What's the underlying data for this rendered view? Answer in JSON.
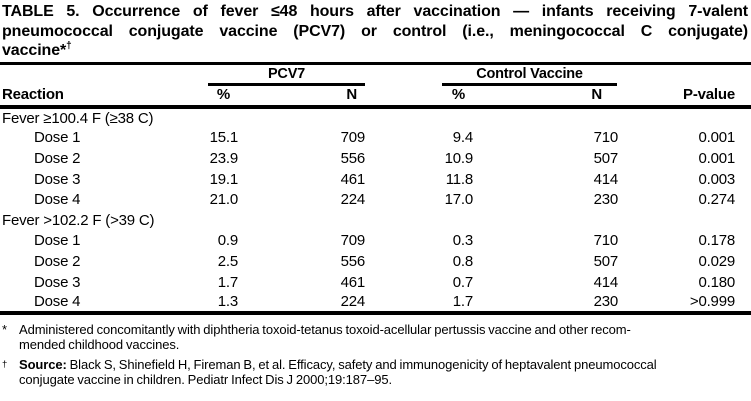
{
  "title": {
    "line1": "TABLE 5. Occurrence of fever ≤48 hours after vaccination — infants receiving 7-valent",
    "line2": "pneumococcal conjugate vaccine (PCV7) or control (i.e., meningococcal C conjugate)",
    "line3_text": "vaccine*",
    "line3_dagger": "†"
  },
  "table": {
    "groups": {
      "pcv7": "PCV7",
      "control": "Control Vaccine"
    },
    "columns": {
      "reaction": "Reaction",
      "pcv7_pct": "%",
      "pcv7_n": "N",
      "control_pct": "%",
      "control_n": "N",
      "p_value": "P-value"
    },
    "sections": [
      {
        "label": "Fever ≥100.4 F (≥38 C)",
        "rows": [
          {
            "reaction": "Dose 1",
            "pcv7_pct": "15.1",
            "pcv7_n": "709",
            "ctrl_pct": "9.4",
            "ctrl_n": "710",
            "p": "0.001"
          },
          {
            "reaction": "Dose 2",
            "pcv7_pct": "23.9",
            "pcv7_n": "556",
            "ctrl_pct": "10.9",
            "ctrl_n": "507",
            "p": "0.001"
          },
          {
            "reaction": "Dose 3",
            "pcv7_pct": "19.1",
            "pcv7_n": "461",
            "ctrl_pct": "11.8",
            "ctrl_n": "414",
            "p": "0.003"
          },
          {
            "reaction": "Dose 4",
            "pcv7_pct": "21.0",
            "pcv7_n": "224",
            "ctrl_pct": "17.0",
            "ctrl_n": "230",
            "p": "0.274"
          }
        ]
      },
      {
        "label": "Fever >102.2 F (>39 C)",
        "rows": [
          {
            "reaction": "Dose 1",
            "pcv7_pct": "0.9",
            "pcv7_n": "709",
            "ctrl_pct": "0.3",
            "ctrl_n": "710",
            "p": "0.178"
          },
          {
            "reaction": "Dose 2",
            "pcv7_pct": "2.5",
            "pcv7_n": "556",
            "ctrl_pct": "0.8",
            "ctrl_n": "507",
            "p": "0.029"
          },
          {
            "reaction": "Dose 3",
            "pcv7_pct": "1.7",
            "pcv7_n": "461",
            "ctrl_pct": "0.7",
            "ctrl_n": "414",
            "p": "0.180"
          },
          {
            "reaction": "Dose 4",
            "pcv7_pct": "1.3",
            "pcv7_n": "224",
            "ctrl_pct": "1.7",
            "ctrl_n": "230",
            "p": ">0.999"
          }
        ]
      }
    ]
  },
  "footnotes": [
    {
      "marker": "*",
      "line1": "Administered concomitantly with diphtheria toxoid-tetanus toxoid-acellular pertussis vaccine and other recom-",
      "line2": "mended childhood vaccines."
    },
    {
      "marker": "†",
      "source_label": "Source:",
      "line1_rest": " Black S, Shinefield H, Fireman B, et al. Efficacy, safety and immunogenicity of heptavalent pneumococcal",
      "line2": "conjugate vaccine in children. Pediatr Infect Dis J 2000;19:187–95."
    }
  ],
  "colors": {
    "text": "#000000",
    "background": "#ffffff",
    "rule": "#000000"
  }
}
